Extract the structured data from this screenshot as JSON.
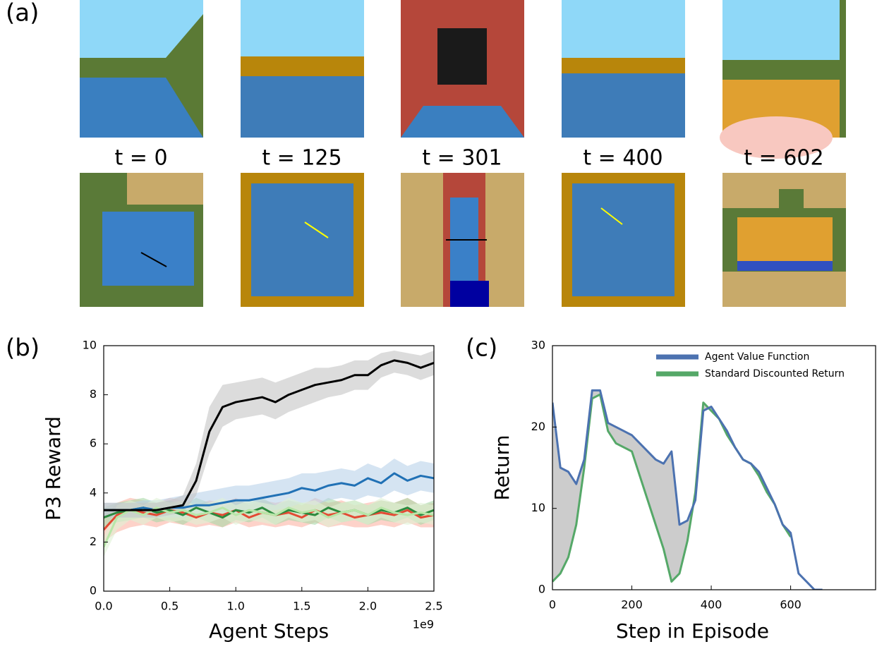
{
  "panels": {
    "a_label": "(a)",
    "b_label": "(b)",
    "c_label": "(c)",
    "time_labels": [
      "t = 0",
      "t = 125",
      "t = 301",
      "t = 400",
      "t = 602"
    ]
  },
  "chart_data": [
    {
      "type": "line",
      "xlabel": "Agent Steps",
      "ylabel": "P3 Reward",
      "x_offset_label": "1e9",
      "xlim": [
        0,
        2.5
      ],
      "ylim": [
        0,
        10
      ],
      "xticks": [
        {
          "value": 0,
          "label": "0.0"
        },
        0.5,
        {
          "value": 1,
          "label": "1.0"
        },
        1.5,
        {
          "value": 2,
          "label": "2.0"
        },
        2.5
      ],
      "yticks": [
        0,
        2,
        4,
        6,
        8,
        10
      ],
      "grid": false,
      "x": [
        0,
        0.1,
        0.2,
        0.3,
        0.4,
        0.5,
        0.6,
        0.7,
        0.8,
        0.9,
        1.0,
        1.1,
        1.2,
        1.3,
        1.4,
        1.5,
        1.6,
        1.7,
        1.8,
        1.9,
        2.0,
        2.1,
        2.2,
        2.3,
        2.4,
        2.5
      ],
      "series": [
        {
          "color": "#e34a33",
          "band_color": "#fbb4a5",
          "values": [
            2.5,
            3.1,
            3.3,
            3.2,
            3.1,
            3.3,
            3.2,
            3.0,
            3.2,
            3.1,
            3.3,
            3.0,
            3.2,
            3.1,
            3.2,
            3.0,
            3.3,
            3.1,
            3.2,
            3.0,
            3.1,
            3.2,
            3.1,
            3.3,
            3.0,
            3.1
          ],
          "lower": [
            2.0,
            2.4,
            2.6,
            2.7,
            2.6,
            2.8,
            2.7,
            2.6,
            2.7,
            2.6,
            2.8,
            2.6,
            2.7,
            2.6,
            2.7,
            2.6,
            2.8,
            2.6,
            2.7,
            2.6,
            2.6,
            2.7,
            2.6,
            2.8,
            2.6,
            2.6
          ],
          "upper": [
            3.0,
            3.6,
            3.8,
            3.7,
            3.6,
            3.8,
            3.7,
            3.5,
            3.7,
            3.6,
            3.8,
            3.5,
            3.7,
            3.6,
            3.7,
            3.5,
            3.8,
            3.6,
            3.7,
            3.5,
            3.6,
            3.7,
            3.6,
            3.8,
            3.5,
            3.6
          ]
        },
        {
          "color": "#2c8a3e",
          "band_color": "#a8d8a8",
          "values": [
            3.0,
            3.2,
            3.3,
            3.4,
            3.2,
            3.3,
            3.1,
            3.4,
            3.2,
            3.0,
            3.3,
            3.2,
            3.4,
            3.1,
            3.3,
            3.2,
            3.1,
            3.4,
            3.2,
            3.3,
            3.1,
            3.3,
            3.2,
            3.4,
            3.1,
            3.3
          ],
          "lower": [
            2.6,
            2.8,
            2.9,
            3.0,
            2.8,
            2.9,
            2.7,
            3.0,
            2.8,
            2.6,
            2.9,
            2.8,
            3.0,
            2.7,
            2.9,
            2.8,
            2.7,
            3.0,
            2.8,
            2.9,
            2.7,
            2.9,
            2.8,
            3.0,
            2.7,
            2.9
          ],
          "upper": [
            3.4,
            3.6,
            3.7,
            3.8,
            3.6,
            3.7,
            3.5,
            3.8,
            3.6,
            3.4,
            3.7,
            3.6,
            3.8,
            3.5,
            3.7,
            3.6,
            3.5,
            3.8,
            3.6,
            3.7,
            3.5,
            3.7,
            3.6,
            3.8,
            3.5,
            3.7
          ]
        },
        {
          "color": "#2171b5",
          "band_color": "#b9d2ea",
          "values": [
            3.3,
            3.3,
            3.3,
            3.4,
            3.3,
            3.4,
            3.4,
            3.5,
            3.5,
            3.6,
            3.7,
            3.7,
            3.8,
            3.9,
            4.0,
            4.2,
            4.1,
            4.3,
            4.4,
            4.3,
            4.6,
            4.4,
            4.8,
            4.5,
            4.7,
            4.6
          ],
          "lower": [
            3.0,
            3.0,
            3.0,
            3.0,
            3.0,
            3.0,
            3.0,
            3.1,
            3.1,
            3.1,
            3.2,
            3.2,
            3.3,
            3.3,
            3.4,
            3.6,
            3.5,
            3.7,
            3.8,
            3.7,
            3.9,
            3.8,
            4.1,
            3.9,
            4.1,
            4.0
          ],
          "upper": [
            3.6,
            3.6,
            3.6,
            3.7,
            3.7,
            3.8,
            3.9,
            4.0,
            4.1,
            4.2,
            4.3,
            4.3,
            4.4,
            4.5,
            4.6,
            4.8,
            4.8,
            4.9,
            5.0,
            4.9,
            5.2,
            5.0,
            5.4,
            5.1,
            5.3,
            5.2
          ]
        },
        {
          "color": "#b8e6a8",
          "band_color": "#dff2d6",
          "values": [
            1.8,
            3.0,
            3.3,
            3.1,
            3.4,
            3.2,
            3.3,
            3.1,
            3.2,
            3.4,
            3.1,
            3.3,
            3.2,
            3.1,
            3.4,
            3.2,
            3.3,
            3.0,
            3.2,
            3.3,
            3.1,
            3.4,
            3.2,
            3.1,
            3.2,
            3.1
          ],
          "lower": [
            1.4,
            2.5,
            2.9,
            2.7,
            3.0,
            2.8,
            2.9,
            2.7,
            2.8,
            3.0,
            2.7,
            2.9,
            2.8,
            2.7,
            3.0,
            2.8,
            2.9,
            2.6,
            2.8,
            2.9,
            2.7,
            3.0,
            2.8,
            2.7,
            2.8,
            2.7
          ],
          "upper": [
            2.2,
            3.5,
            3.7,
            3.5,
            3.8,
            3.6,
            3.7,
            3.5,
            3.6,
            3.8,
            3.5,
            3.7,
            3.6,
            3.5,
            3.8,
            3.6,
            3.7,
            3.4,
            3.6,
            3.7,
            3.5,
            3.8,
            3.6,
            3.5,
            3.6,
            3.5
          ]
        },
        {
          "color": "#000000",
          "band_color": "#c4c4c4",
          "values": [
            3.3,
            3.3,
            3.3,
            3.3,
            3.3,
            3.4,
            3.5,
            4.5,
            6.5,
            7.5,
            7.7,
            7.8,
            7.9,
            7.7,
            8.0,
            8.2,
            8.4,
            8.5,
            8.6,
            8.8,
            8.8,
            9.2,
            9.4,
            9.3,
            9.1,
            9.3
          ],
          "lower": [
            3.0,
            3.0,
            3.0,
            3.0,
            3.0,
            3.1,
            3.2,
            3.9,
            5.6,
            6.7,
            7.0,
            7.1,
            7.2,
            7.0,
            7.3,
            7.5,
            7.7,
            7.9,
            8.0,
            8.2,
            8.2,
            8.7,
            8.9,
            8.8,
            8.6,
            8.8
          ],
          "upper": [
            3.6,
            3.6,
            3.6,
            3.6,
            3.6,
            3.7,
            3.9,
            5.2,
            7.5,
            8.4,
            8.5,
            8.6,
            8.7,
            8.5,
            8.7,
            8.9,
            9.1,
            9.1,
            9.2,
            9.4,
            9.4,
            9.7,
            9.8,
            9.7,
            9.6,
            9.8
          ]
        }
      ]
    },
    {
      "type": "line",
      "xlabel": "Step in Episode",
      "ylabel": "Return",
      "xlim": [
        0,
        814
      ],
      "ylim": [
        0,
        30
      ],
      "xticks": [
        0,
        200,
        400,
        600
      ],
      "yticks": [
        0,
        10,
        20,
        30
      ],
      "grid": false,
      "legend": "upper right",
      "fill_between_color": "#cccccc",
      "x": [
        0,
        20,
        40,
        60,
        80,
        100,
        120,
        140,
        160,
        180,
        200,
        220,
        240,
        260,
        280,
        300,
        320,
        340,
        360,
        380,
        400,
        420,
        440,
        460,
        480,
        500,
        520,
        540,
        560,
        580,
        600,
        620,
        640,
        660,
        680
      ],
      "series": [
        {
          "name": "Agent Value Function",
          "color": "#4c72b0",
          "values": [
            23,
            15,
            14.5,
            13,
            16,
            24.5,
            24.5,
            20.5,
            20,
            19.5,
            19,
            18,
            17,
            16,
            15.5,
            17,
            8,
            8.5,
            11,
            22,
            22.5,
            21,
            19.5,
            17.5,
            16,
            15.5,
            14.5,
            12.5,
            10.5,
            8,
            7,
            2,
            1,
            0,
            0
          ]
        },
        {
          "name": "Standard Discounted Return",
          "color": "#55a868",
          "values": [
            1,
            2,
            4,
            8,
            15,
            23.5,
            24,
            19.5,
            18,
            17.5,
            17,
            14,
            11,
            8,
            5,
            1,
            2,
            6,
            12,
            23,
            22,
            21,
            19,
            17.5,
            16,
            15.5,
            14,
            12,
            10.5,
            8,
            6.5,
            null,
            null,
            null,
            null
          ]
        }
      ]
    }
  ]
}
